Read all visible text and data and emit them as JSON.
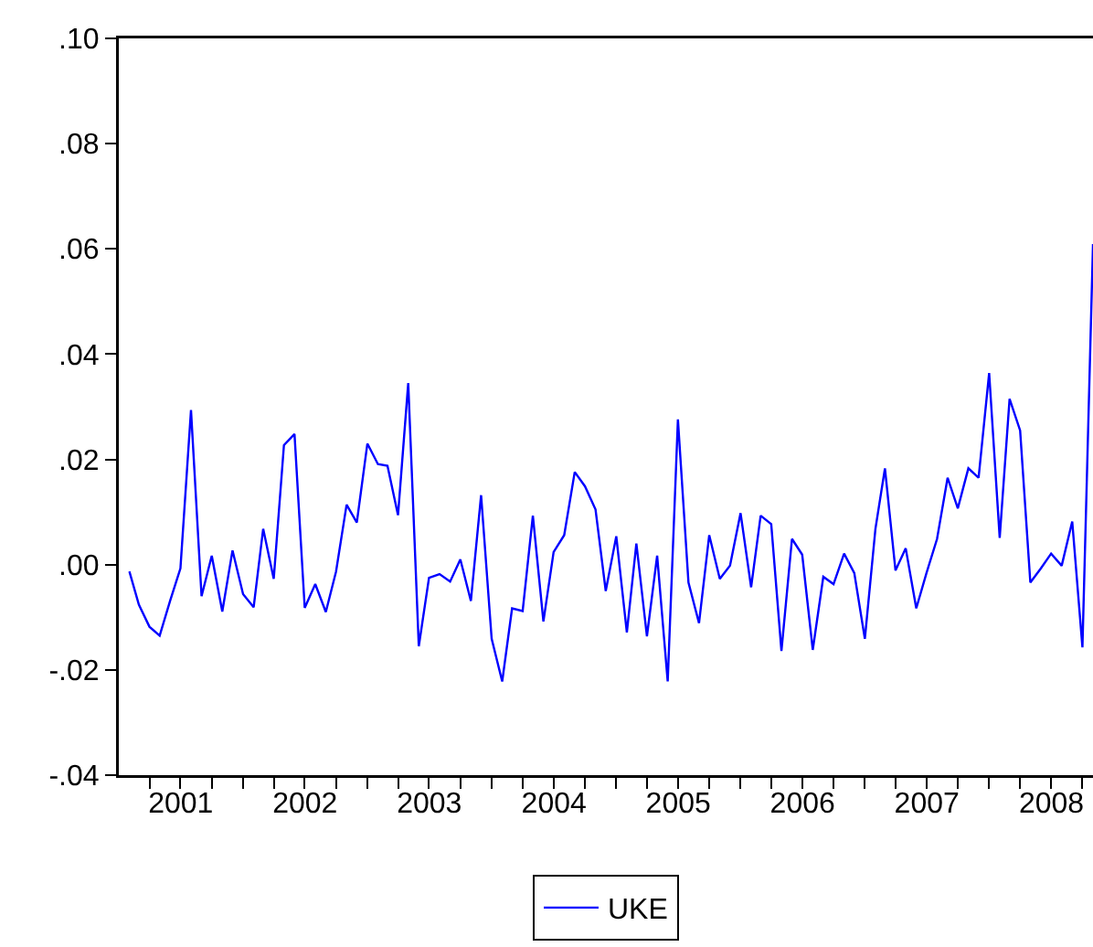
{
  "chart_data": {
    "type": "line",
    "x": [
      "2001-02",
      "2001-03",
      "2001-04",
      "2001-05",
      "2001-06",
      "2001-07",
      "2001-08",
      "2001-09",
      "2001-10",
      "2001-11",
      "2001-12",
      "2002-01",
      "2002-02",
      "2002-03",
      "2002-04",
      "2002-05",
      "2002-06",
      "2002-07",
      "2002-08",
      "2002-09",
      "2002-10",
      "2002-11",
      "2002-12",
      "2003-01",
      "2003-02",
      "2003-03",
      "2003-04",
      "2003-05",
      "2003-06",
      "2003-07",
      "2003-08",
      "2003-09",
      "2003-10",
      "2003-11",
      "2003-12",
      "2004-01",
      "2004-02",
      "2004-03",
      "2004-04",
      "2004-05",
      "2004-06",
      "2004-07",
      "2004-08",
      "2004-09",
      "2004-10",
      "2004-11",
      "2004-12",
      "2005-01",
      "2005-02",
      "2005-03",
      "2005-04",
      "2005-05",
      "2005-06",
      "2005-07",
      "2005-08",
      "2005-09",
      "2005-10",
      "2005-11",
      "2005-12",
      "2006-01",
      "2006-02",
      "2006-03",
      "2006-04",
      "2006-05",
      "2006-06",
      "2006-07",
      "2006-08",
      "2006-09",
      "2006-10",
      "2006-11",
      "2006-12",
      "2007-01",
      "2007-02",
      "2007-03",
      "2007-04",
      "2007-05",
      "2007-06",
      "2007-07",
      "2007-08",
      "2007-09",
      "2007-10",
      "2007-11",
      "2007-12",
      "2008-01",
      "2008-02",
      "2008-03",
      "2008-04",
      "2008-05",
      "2008-06",
      "2008-07",
      "2008-08",
      "2008-09",
      "2008-10",
      "2008-11"
    ],
    "series": [
      {
        "name": "UKE",
        "color": "#0000ff",
        "values": [
          -0.0013,
          -0.0076,
          -0.0118,
          -0.0135,
          -0.0068,
          -0.0007,
          0.0294,
          -0.006,
          0.0017,
          -0.0089,
          0.0027,
          -0.0056,
          -0.0081,
          0.0068,
          -0.0027,
          0.0227,
          0.0248,
          -0.0082,
          -0.0037,
          -0.009,
          -0.0013,
          0.0114,
          0.008,
          0.023,
          0.0191,
          0.0188,
          0.0094,
          0.0345,
          -0.0155,
          -0.0025,
          -0.0018,
          -0.0032,
          0.001,
          -0.0069,
          0.0132,
          -0.0141,
          -0.0222,
          -0.0083,
          -0.0088,
          0.0093,
          -0.0108,
          0.0024,
          0.0056,
          0.0176,
          0.0149,
          0.0105,
          -0.005,
          0.0054,
          -0.0129,
          0.004,
          -0.0136,
          0.0017,
          -0.0222,
          0.0276,
          -0.0034,
          -0.0111,
          0.0056,
          -0.0027,
          -0.0002,
          0.0098,
          -0.0043,
          0.0093,
          0.0077,
          -0.0164,
          0.0049,
          0.0019,
          -0.0162,
          -0.0023,
          -0.0037,
          0.0021,
          -0.0016,
          -0.0141,
          0.0068,
          0.0183,
          -0.0011,
          0.0031,
          -0.0083,
          -0.0016,
          0.0049,
          0.0165,
          0.0107,
          0.0183,
          0.0165,
          0.0364,
          0.0051,
          0.0315,
          0.0255,
          -0.0034,
          -0.0007,
          0.0021,
          -0.0002,
          0.0082,
          -0.0157,
          0.0609
        ]
      }
    ],
    "xlim": [
      "2001-01-01",
      "2008-11-01"
    ],
    "xticks": [
      {
        "value": "2001-04-01",
        "label": null
      },
      {
        "value": "2001-07-01",
        "label": null
      },
      {
        "value": "2001-07-02",
        "label": "2001"
      },
      {
        "value": "2001-10-01",
        "label": null
      },
      {
        "value": "2002-01-01",
        "label": null
      },
      {
        "value": "2002-04-01",
        "label": null
      },
      {
        "value": "2002-07-01",
        "label": null
      },
      {
        "value": "2002-07-02",
        "label": "2002"
      },
      {
        "value": "2002-10-01",
        "label": null
      },
      {
        "value": "2003-01-01",
        "label": null
      },
      {
        "value": "2003-04-01",
        "label": null
      },
      {
        "value": "2003-07-01",
        "label": null
      },
      {
        "value": "2003-07-02",
        "label": "2003"
      },
      {
        "value": "2003-10-01",
        "label": null
      },
      {
        "value": "2004-01-01",
        "label": null
      },
      {
        "value": "2004-04-01",
        "label": null
      },
      {
        "value": "2004-07-01",
        "label": null
      },
      {
        "value": "2004-07-02",
        "label": "2004"
      },
      {
        "value": "2004-10-01",
        "label": null
      },
      {
        "value": "2005-01-01",
        "label": null
      },
      {
        "value": "2005-04-01",
        "label": null
      },
      {
        "value": "2005-07-01",
        "label": null
      },
      {
        "value": "2005-07-02",
        "label": "2005"
      },
      {
        "value": "2005-10-01",
        "label": null
      },
      {
        "value": "2006-01-01",
        "label": null
      },
      {
        "value": "2006-04-01",
        "label": null
      },
      {
        "value": "2006-07-01",
        "label": null
      },
      {
        "value": "2006-07-02",
        "label": "2006"
      },
      {
        "value": "2006-10-01",
        "label": null
      },
      {
        "value": "2007-01-01",
        "label": null
      },
      {
        "value": "2007-04-01",
        "label": null
      },
      {
        "value": "2007-07-01",
        "label": null
      },
      {
        "value": "2007-07-02",
        "label": "2007"
      },
      {
        "value": "2007-10-01",
        "label": null
      },
      {
        "value": "2008-01-01",
        "label": null
      },
      {
        "value": "2008-04-01",
        "label": null
      },
      {
        "value": "2008-07-01",
        "label": null
      },
      {
        "value": "2008-07-02",
        "label": "2008"
      },
      {
        "value": "2008-10-01",
        "label": null
      }
    ],
    "ylim": [
      -0.04,
      0.1
    ],
    "yticks": [
      {
        "value": -0.04,
        "label": "-.04"
      },
      {
        "value": -0.02,
        "label": "-.02"
      },
      {
        "value": 0,
        "label": ".00"
      },
      {
        "value": 0.02,
        "label": ".02"
      },
      {
        "value": 0.04,
        "label": ".04"
      },
      {
        "value": 0.06,
        "label": ".06"
      },
      {
        "value": 0.08,
        "label": ".08"
      },
      {
        "value": 0.1,
        "label": ".10"
      }
    ],
    "grid": false,
    "legend": "bottom",
    "marker": "none",
    "line_style": "solid"
  }
}
